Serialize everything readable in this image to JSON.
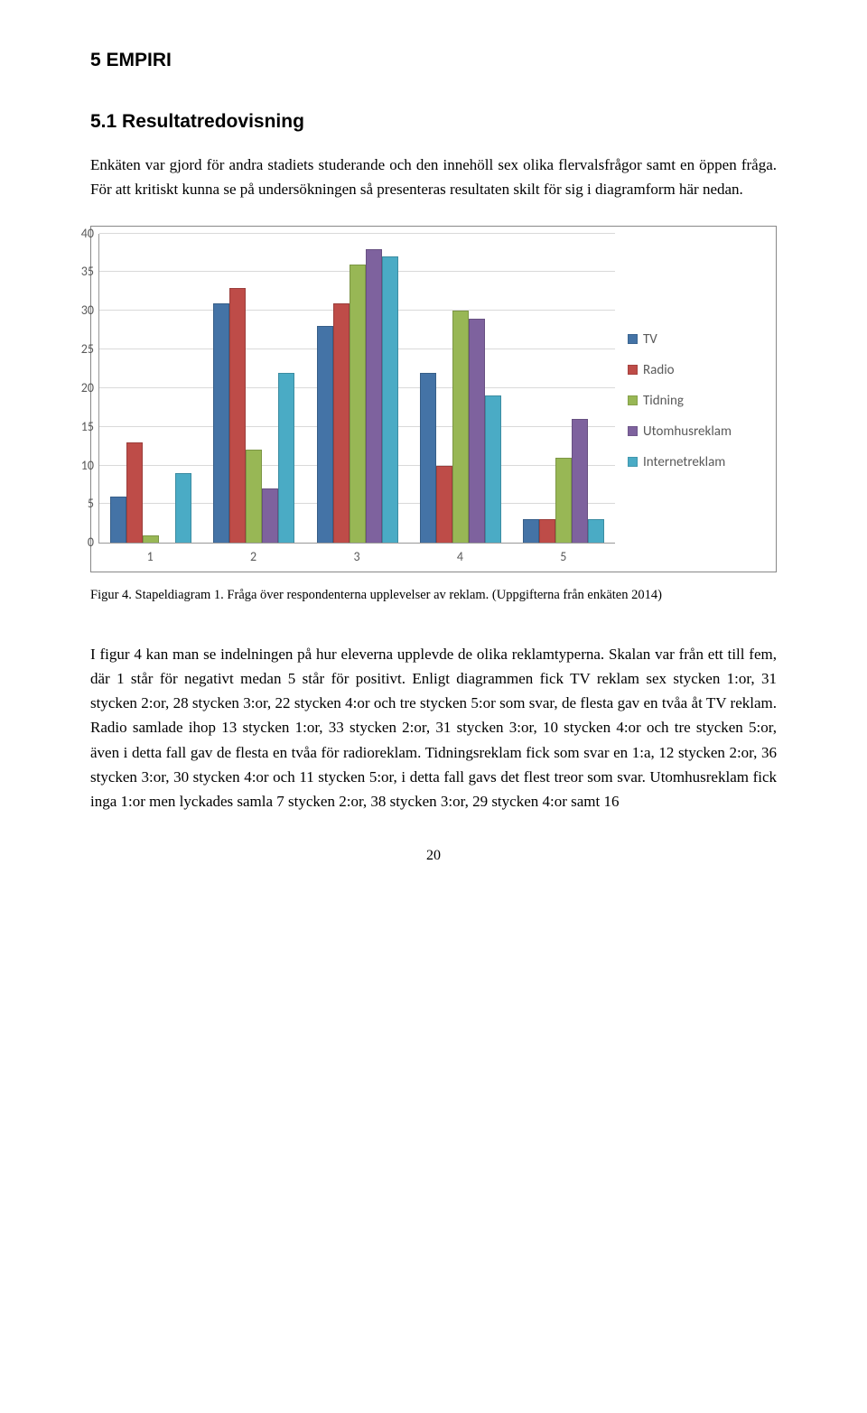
{
  "heading1": "5   EMPIRI",
  "heading2": "5.1  Resultatredovisning",
  "intro": "Enkäten var gjord för andra stadiets studerande och den innehöll sex olika flervalsfrågor samt en öppen fråga. För att kritiskt kunna se på undersökningen så presenteras resultaten skilt för sig i diagramform här nedan.",
  "chart": {
    "type": "bar",
    "ylim": [
      0,
      40
    ],
    "ytick_step": 5,
    "yticks": [
      0,
      5,
      10,
      15,
      20,
      25,
      30,
      35,
      40
    ],
    "grid_color": "#d9d9d9",
    "axis_color": "#999999",
    "tick_font_color": "#595959",
    "tick_fontsize": 14,
    "categories": [
      "1",
      "2",
      "3",
      "4",
      "5"
    ],
    "series": [
      {
        "label": "TV",
        "color": "#4473a6",
        "values": [
          6,
          31,
          28,
          22,
          3
        ]
      },
      {
        "label": "Radio",
        "color": "#be4c48",
        "values": [
          13,
          33,
          31,
          10,
          3
        ]
      },
      {
        "label": "Tidning",
        "color": "#98b755",
        "values": [
          1,
          12,
          36,
          30,
          11
        ]
      },
      {
        "label": "Utomhusreklam",
        "color": "#7e629e",
        "values": [
          0,
          7,
          38,
          29,
          16
        ]
      },
      {
        "label": "Internetreklam",
        "color": "#4aabc5",
        "values": [
          9,
          22,
          37,
          19,
          3
        ]
      }
    ]
  },
  "caption": "Figur 4. Stapeldiagram 1. Fråga över respondenterna upplevelser av reklam. (Uppgifterna från enkäten 2014)",
  "body": "I figur 4 kan man se indelningen på hur eleverna upplevde de olika reklamtyperna. Skalan var från ett till fem, där 1 står för negativt medan 5 står för positivt. Enligt diagrammen fick TV reklam sex stycken 1:or, 31 stycken 2:or, 28 stycken 3:or, 22 stycken 4:or och tre stycken 5:or som svar, de flesta gav en tvåa åt TV reklam. Radio samlade ihop 13 stycken 1:or, 33 stycken 2:or, 31 stycken 3:or, 10 stycken 4:or och tre stycken 5:or, även i detta fall gav de flesta en tvåa för radioreklam. Tidningsreklam fick som svar en 1:a, 12 stycken 2:or, 36 stycken 3:or, 30 stycken 4:or och 11 stycken 5:or, i detta fall gavs det flest treor som svar. Utomhusreklam fick inga 1:or men lyckades samla 7 stycken 2:or, 38 stycken 3:or, 29 stycken 4:or samt 16",
  "page_number": "20"
}
